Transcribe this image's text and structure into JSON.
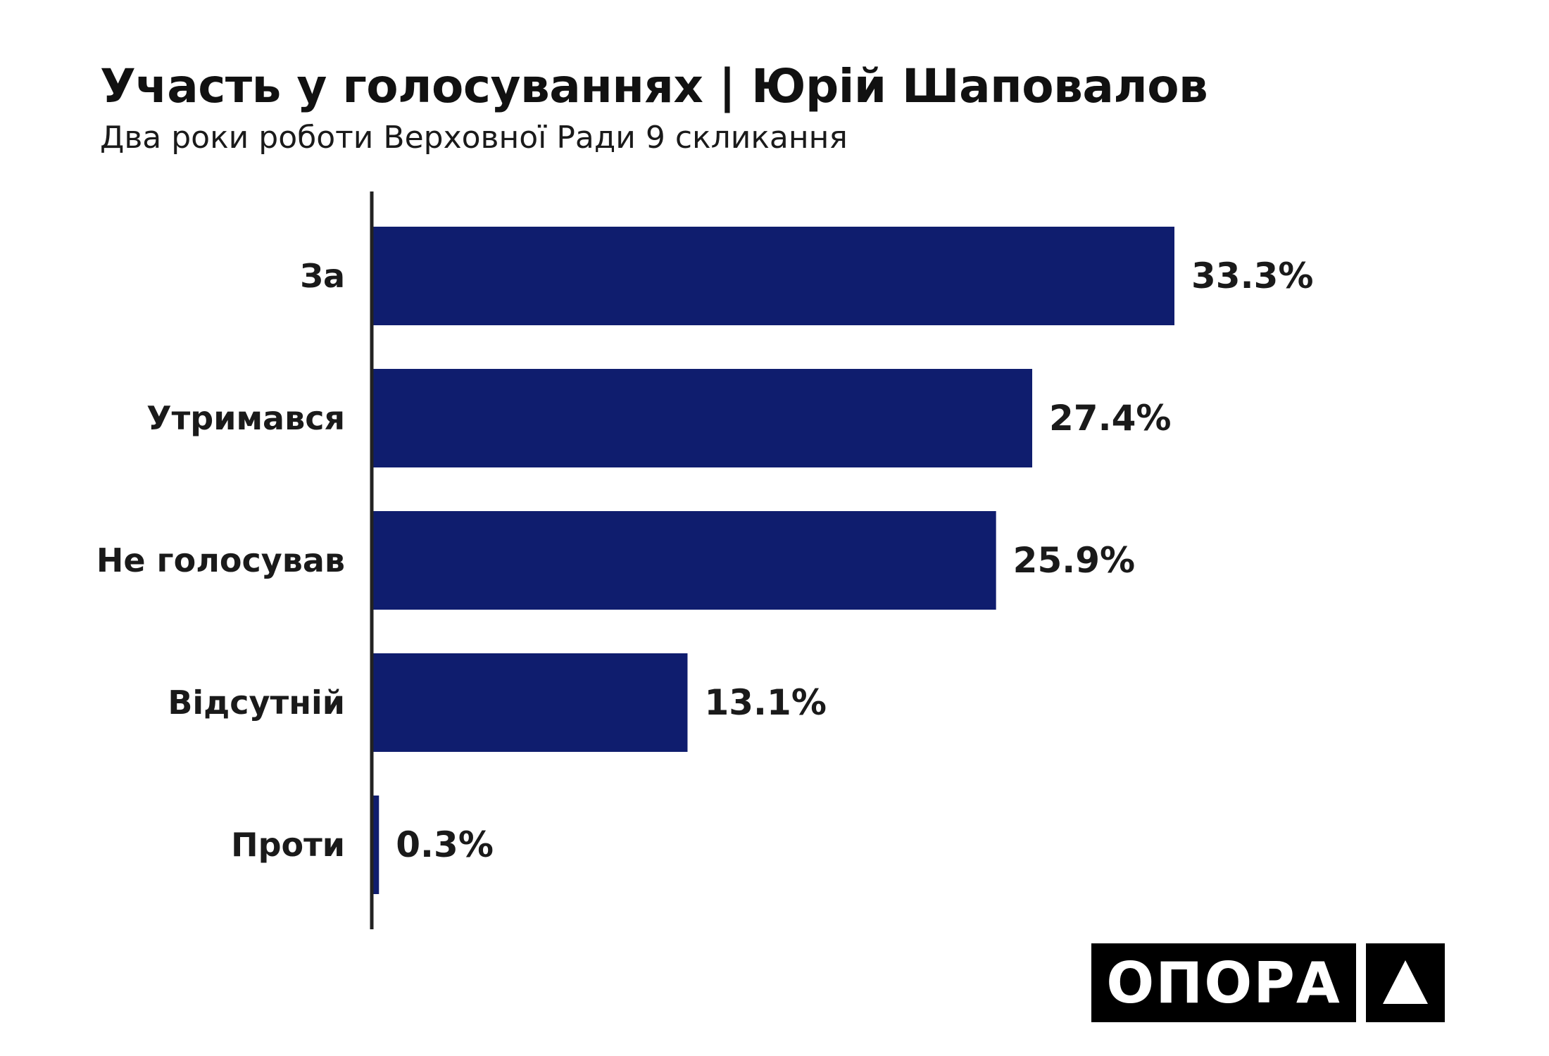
{
  "header": {
    "title": "Участь у голосуваннях | Юрій Шаповалов",
    "subtitle": "Два роки роботи Верховної Ради 9 скликання"
  },
  "chart_data": {
    "type": "bar",
    "orientation": "horizontal",
    "categories": [
      "За",
      "Утримався",
      "Не голосував",
      "Відсутній",
      "Проти"
    ],
    "values": [
      33.3,
      27.4,
      25.9,
      13.1,
      0.3
    ],
    "value_labels": [
      "33.3%",
      "27.4%",
      "25.9%",
      "13.1%",
      "0.3%"
    ],
    "unit": "%",
    "bar_color": "#0f1d6e",
    "axis_color": "#222222",
    "grid": false,
    "legend": "none"
  },
  "logo": {
    "text": "ОПОРА",
    "mark": "triangle-up-icon",
    "background": "#000000",
    "foreground": "#ffffff"
  }
}
